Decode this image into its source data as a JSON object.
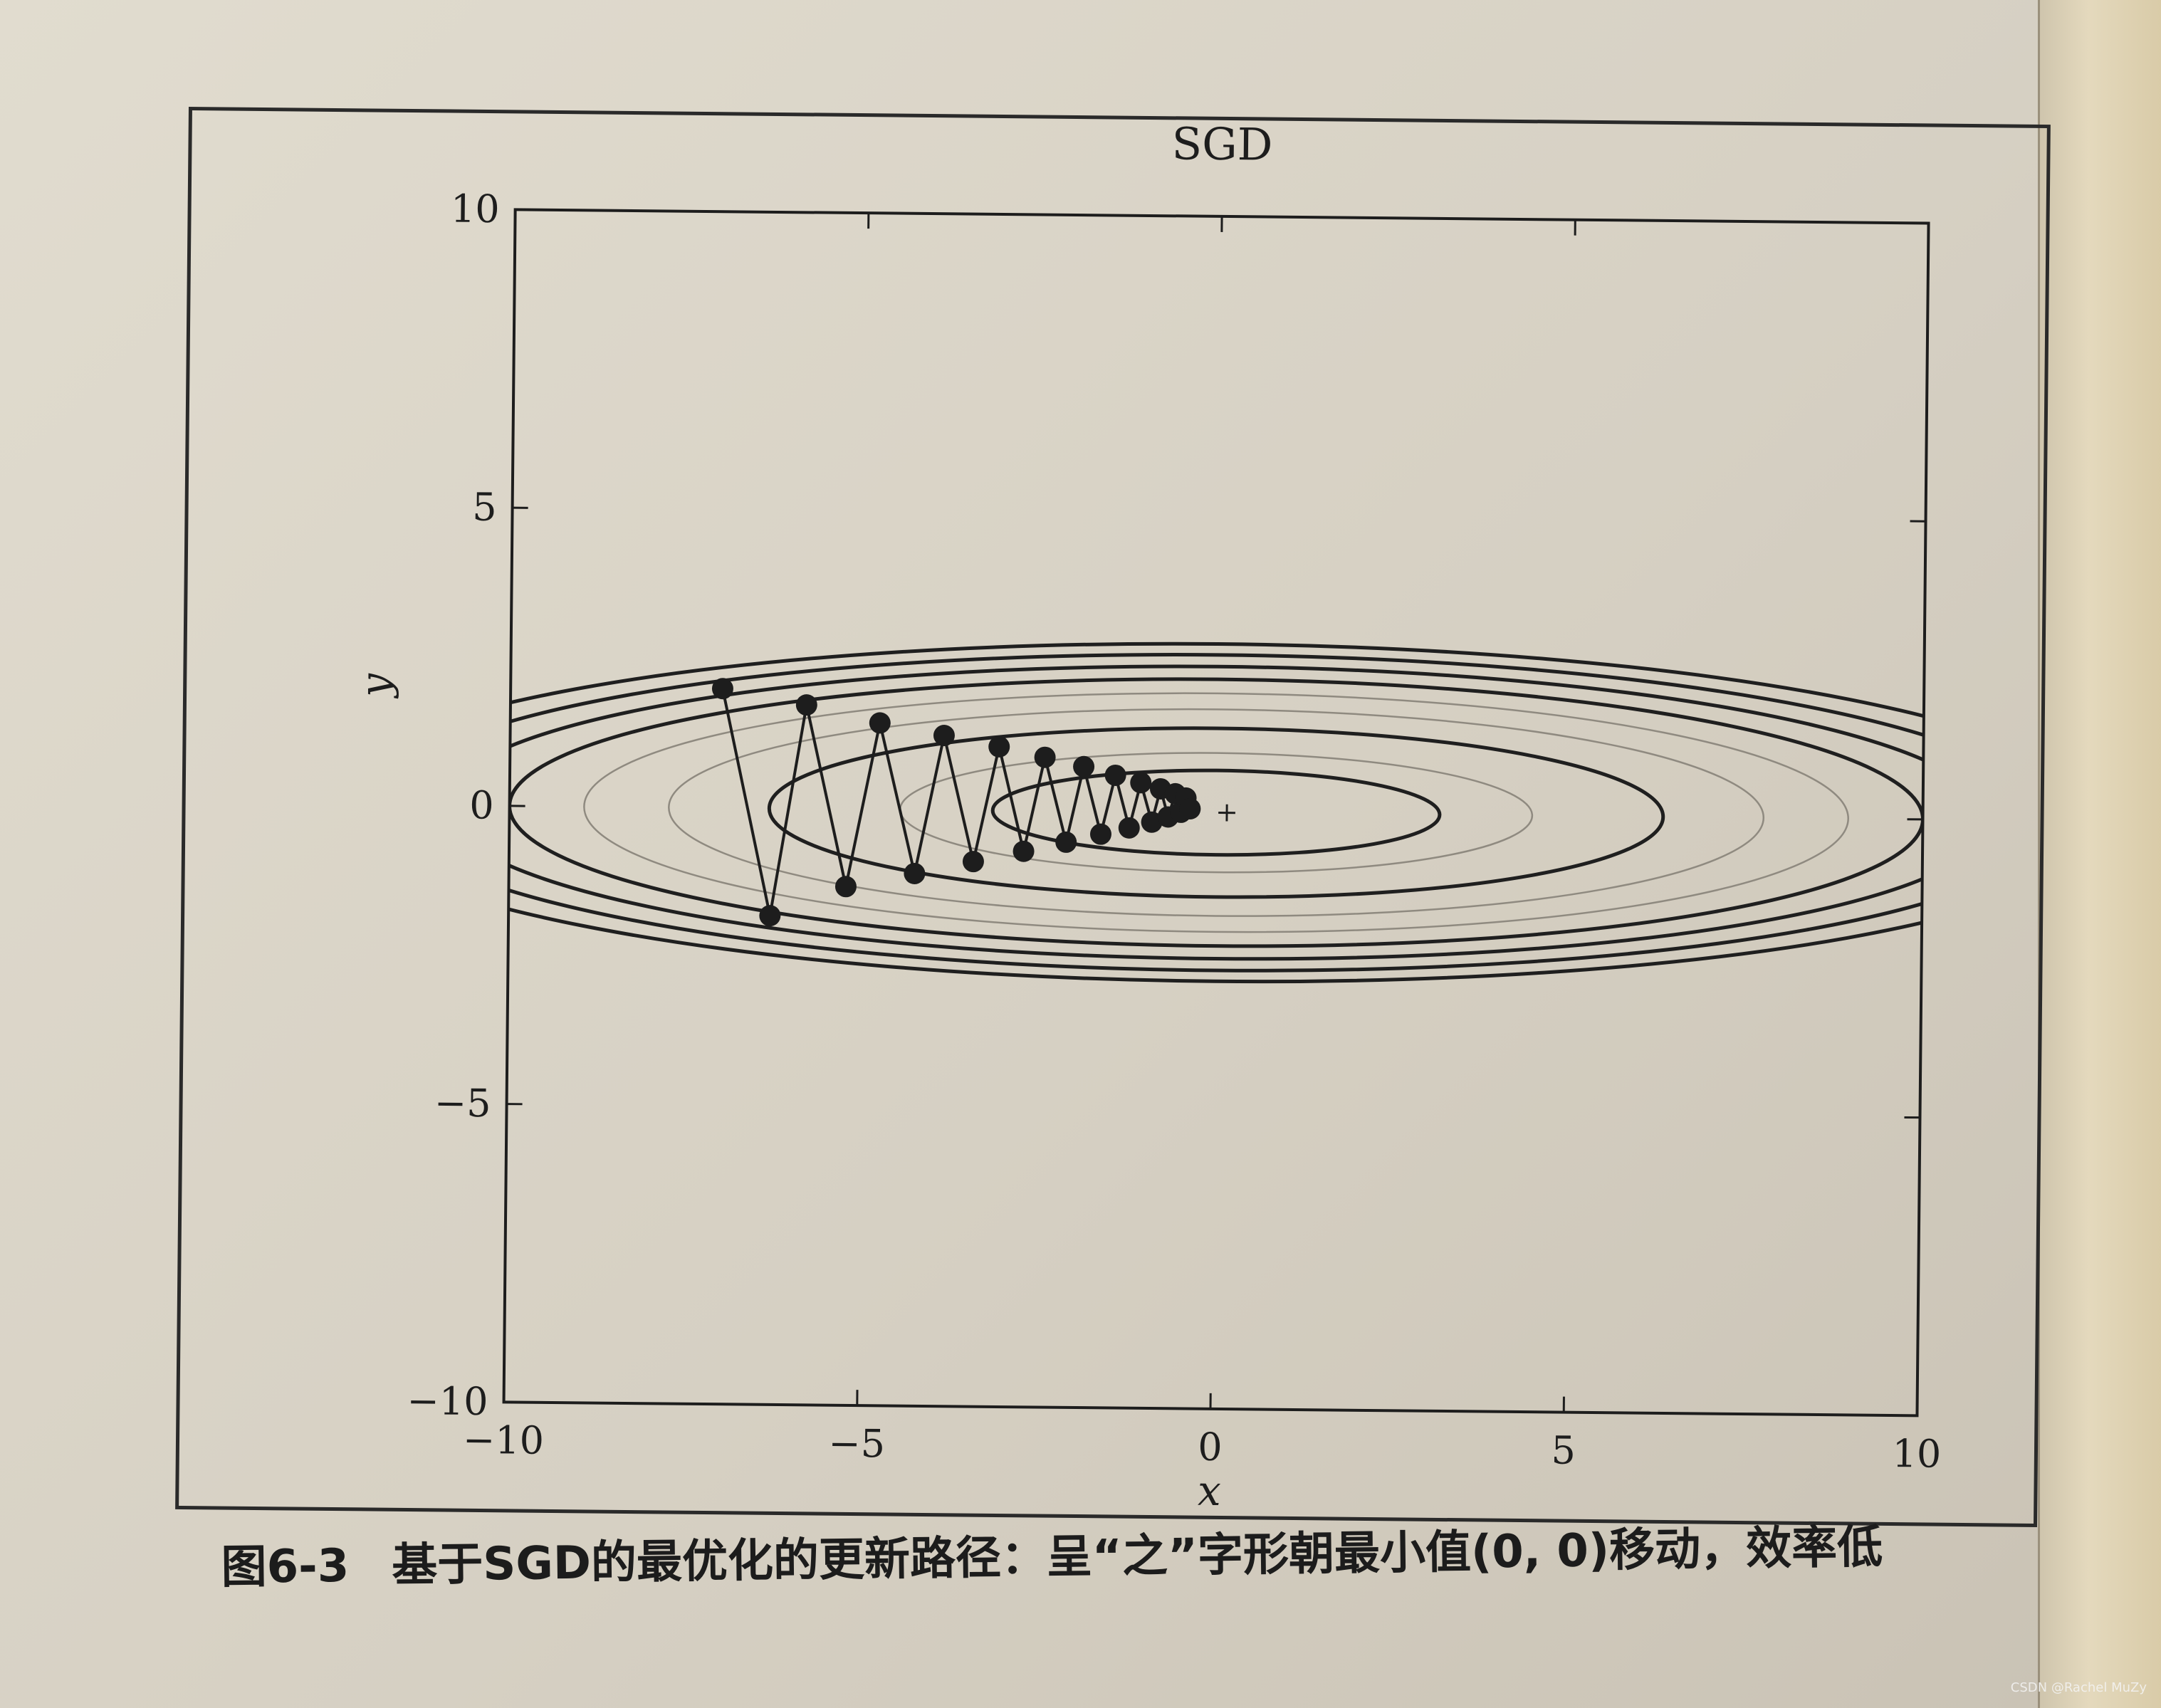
{
  "caption": {
    "label": "图6-3",
    "text": "基于SGD的最优化的更新路径：呈“之”字形朝最小值(0, 0)移动，效率低"
  },
  "watermark": "CSDN @Rachel MuZy",
  "colors": {
    "ink": "#1d1d1d",
    "contour": "#1f1f1f",
    "contour_faint": "#8f8a80"
  },
  "chart_data": {
    "type": "line",
    "title": "SGD",
    "xlabel": "x",
    "ylabel": "y",
    "xlim": [
      -10,
      10
    ],
    "ylim": [
      -10,
      10
    ],
    "xticks": [
      "−10",
      "−5",
      "0",
      "5",
      "10"
    ],
    "yticks": [
      "10",
      "5",
      "0",
      "−5",
      "−10"
    ],
    "grid": false,
    "minimum_marker": "+",
    "minimum": [
      0,
      0
    ],
    "contour_levels": [
      {
        "value": 0.5,
        "faint": false
      },
      {
        "value": 1.0,
        "faint": true
      },
      {
        "value": 2.0,
        "faint": false
      },
      {
        "value": 3.0,
        "faint": true
      },
      {
        "value": 4.0,
        "faint": true
      },
      {
        "value": 5.0,
        "faint": false
      },
      {
        "value": 6.0,
        "faint": false
      },
      {
        "value": 7.0,
        "faint": false
      },
      {
        "value": 8.0,
        "faint": false
      }
    ],
    "path": {
      "x": [
        -7.0,
        -6.3,
        -5.81,
        -5.23,
        -4.77,
        -4.26,
        -3.86,
        -3.43,
        -3.08,
        -2.72,
        -2.43,
        -2.12,
        -1.88,
        -1.63,
        -1.43,
        -1.23,
        -1.07,
        -0.91,
        -0.79,
        -0.68,
        -0.58,
        -0.5,
        -0.43,
        -0.37
      ],
      "y": [
        2.0,
        -1.8,
        1.74,
        -1.3,
        1.45,
        -1.07,
        1.25,
        -0.86,
        1.07,
        -0.68,
        0.9,
        -0.52,
        0.75,
        -0.38,
        0.61,
        -0.27,
        0.49,
        -0.17,
        0.39,
        -0.08,
        0.31,
        0.0,
        0.24,
        0.06
      ]
    }
  }
}
